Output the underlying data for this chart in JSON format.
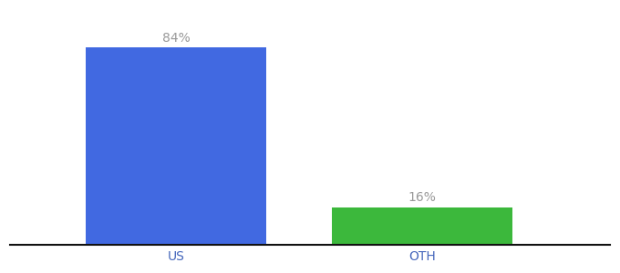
{
  "categories": [
    "US",
    "OTH"
  ],
  "values": [
    84,
    16
  ],
  "bar_colors": [
    "#4169e1",
    "#3cb83c"
  ],
  "labels": [
    "84%",
    "16%"
  ],
  "background_color": "#ffffff",
  "label_color": "#999999",
  "tick_color": "#4466bb",
  "xlabel_fontsize": 10,
  "label_fontsize": 10,
  "ylim": [
    0,
    100
  ],
  "bar_width": 0.25,
  "x_positions": [
    0.28,
    0.62
  ]
}
